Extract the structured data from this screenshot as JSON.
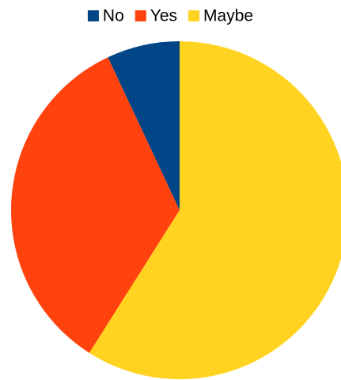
{
  "chart_data": {
    "type": "pie",
    "categories": [
      "No",
      "Yes",
      "Maybe"
    ],
    "values": [
      7,
      34,
      59
    ],
    "colors": [
      "#004586",
      "#ff420e",
      "#ffd320"
    ],
    "legend": "top",
    "direction": "counterclockwise"
  }
}
